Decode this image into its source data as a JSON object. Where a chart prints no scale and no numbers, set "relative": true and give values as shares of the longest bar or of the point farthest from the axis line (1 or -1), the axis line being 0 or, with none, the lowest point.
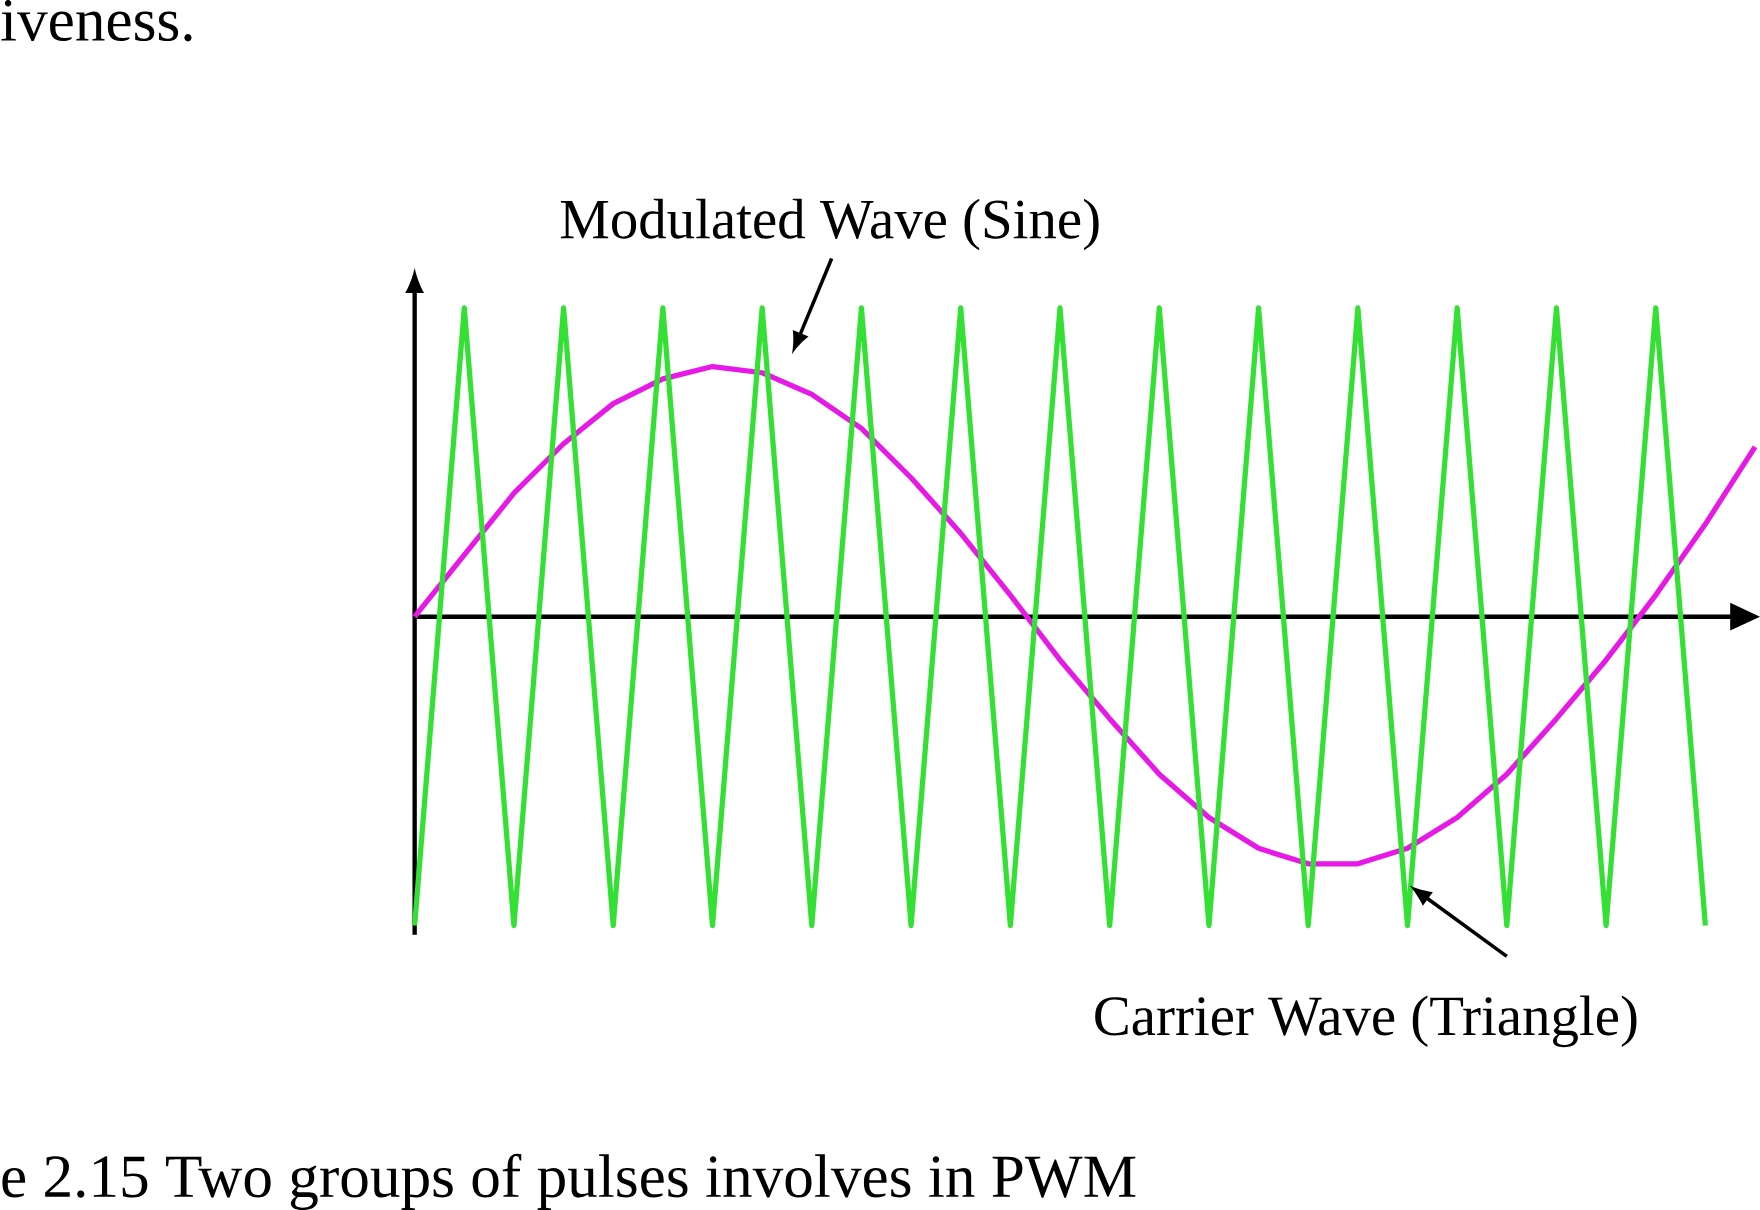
{
  "chart_data": {
    "type": "line",
    "relative": true,
    "categories": [
      null,
      null,
      null,
      null,
      null,
      null,
      null,
      null,
      null,
      null,
      null,
      null,
      null,
      null,
      null,
      null,
      null,
      null,
      null,
      null,
      null,
      null,
      null,
      null,
      null,
      null,
      null,
      null
    ],
    "series": [
      {
        "color": "#e619e6",
        "values": [
          0,
          0.2,
          0.4,
          0.56,
          0.69,
          0.77,
          0.81,
          0.79,
          0.72,
          0.61,
          0.45,
          0.27,
          0.07,
          -0.14,
          -0.33,
          -0.51,
          -0.65,
          -0.75,
          -0.8,
          -0.8,
          -0.75,
          -0.65,
          -0.51,
          -0.33,
          -0.14,
          0.07,
          0.3,
          0.55
        ]
      },
      {
        "color": "#33e033",
        "values": [
          -1,
          1,
          -1,
          1,
          -1,
          1,
          -1,
          1,
          -1,
          1,
          -1,
          1,
          -1,
          1,
          -1,
          1,
          -1,
          1,
          -1,
          1,
          -1,
          1,
          -1,
          1,
          -1,
          1,
          -1,
          null
        ]
      }
    ],
    "annotations": [
      "Modulated Wave (Sine)",
      "Carrier Wave (Triangle)",
      "e 2.15      Two groups of pulses involves in PWM",
      "iveness."
    ]
  }
}
